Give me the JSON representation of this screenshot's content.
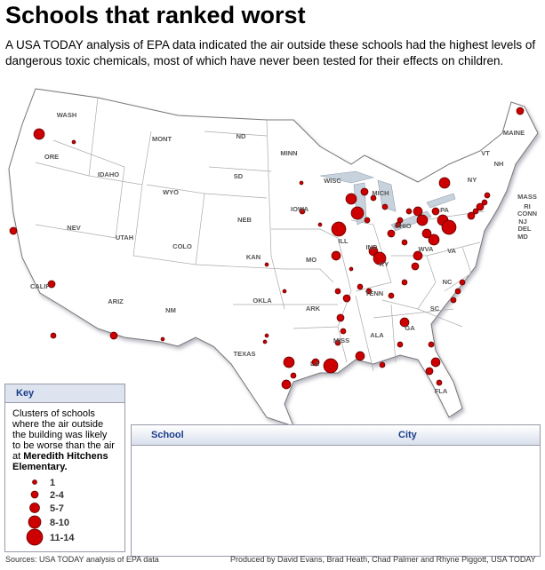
{
  "header": {
    "title": "Schools that ranked worst",
    "subtitle": "A USA TODAY analysis of EPA data indicated the air outside these schools had the highest levels of dangerous toxic chemicals, most of which have never been tested for their effects on children."
  },
  "map": {
    "state_labels": [
      "WASH",
      "ORE",
      "IDAHO",
      "MONT",
      "WYO",
      "NEV",
      "UTAH",
      "COLO",
      "CALIF",
      "ARIZ",
      "NM",
      "ND",
      "SD",
      "NEB",
      "KAN",
      "OKLA",
      "TEXAS",
      "MINN",
      "IOWA",
      "MO",
      "ARK",
      "LA",
      "WISC",
      "ILL",
      "MICH",
      "IND",
      "OHIO",
      "KY",
      "TENN",
      "MISS",
      "ALA",
      "GA",
      "FLA",
      "SC",
      "NC",
      "VA",
      "WVA",
      "PA",
      "NY",
      "VT",
      "NH",
      "MAINE",
      "MASS",
      "RI",
      "CONN",
      "NJ",
      "DEL",
      "MD"
    ]
  },
  "key": {
    "title": "Key",
    "description": "Clusters of schools where the air outside the building was likely to be worse than the air at",
    "description_bold": "Meredith Hitchens Elementary.",
    "sizes": [
      "1",
      "2-4",
      "5-7",
      "8-10",
      "11-14"
    ]
  },
  "table": {
    "columns": [
      "School",
      "City"
    ]
  },
  "footer": {
    "source": "Sources: USA TODAY analysis of EPA data",
    "credit": "Produced by David Evans, Brad Heath, Chad Palmer and Rhyne Piggott, USA TODAY"
  }
}
